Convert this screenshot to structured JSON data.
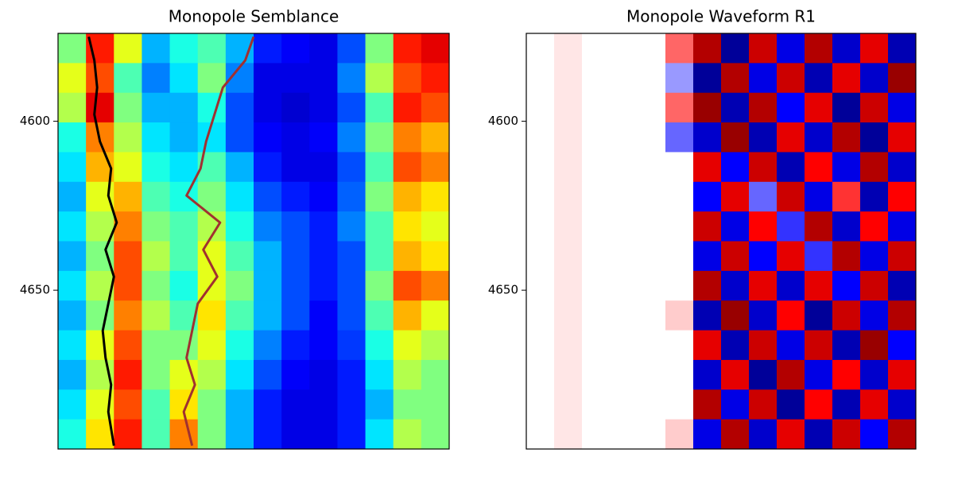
{
  "chart_data": [
    {
      "type": "heatmap",
      "title": "Monopole Semblance",
      "colormap": "jet",
      "ylim": [
        4574,
        4697
      ],
      "y_inverted": true,
      "yticks": [
        4600,
        4650
      ],
      "xlim": [
        0,
        14
      ],
      "z": [
        [
          0.5,
          0.85,
          0.6,
          0.3,
          0.4,
          0.45,
          0.3,
          0.15,
          0.12,
          0.1,
          0.2,
          0.5,
          0.85,
          0.9
        ],
        [
          0.6,
          0.8,
          0.45,
          0.25,
          0.35,
          0.5,
          0.25,
          0.1,
          0.1,
          0.1,
          0.25,
          0.55,
          0.8,
          0.85
        ],
        [
          0.55,
          0.9,
          0.5,
          0.3,
          0.3,
          0.4,
          0.2,
          0.1,
          0.08,
          0.1,
          0.2,
          0.45,
          0.85,
          0.8
        ],
        [
          0.4,
          0.75,
          0.55,
          0.35,
          0.3,
          0.35,
          0.2,
          0.12,
          0.1,
          0.12,
          0.25,
          0.5,
          0.75,
          0.7
        ],
        [
          0.35,
          0.7,
          0.6,
          0.4,
          0.35,
          0.45,
          0.3,
          0.15,
          0.1,
          0.1,
          0.2,
          0.45,
          0.8,
          0.75
        ],
        [
          0.3,
          0.6,
          0.7,
          0.45,
          0.4,
          0.5,
          0.35,
          0.2,
          0.15,
          0.12,
          0.22,
          0.5,
          0.7,
          0.65
        ],
        [
          0.35,
          0.55,
          0.75,
          0.5,
          0.45,
          0.55,
          0.4,
          0.25,
          0.2,
          0.15,
          0.25,
          0.45,
          0.65,
          0.6
        ],
        [
          0.3,
          0.5,
          0.8,
          0.55,
          0.45,
          0.6,
          0.45,
          0.3,
          0.2,
          0.15,
          0.2,
          0.45,
          0.7,
          0.65
        ],
        [
          0.35,
          0.55,
          0.8,
          0.5,
          0.4,
          0.6,
          0.5,
          0.3,
          0.2,
          0.15,
          0.2,
          0.5,
          0.8,
          0.75
        ],
        [
          0.3,
          0.5,
          0.75,
          0.55,
          0.45,
          0.65,
          0.45,
          0.3,
          0.2,
          0.12,
          0.2,
          0.45,
          0.7,
          0.6
        ],
        [
          0.35,
          0.6,
          0.8,
          0.5,
          0.5,
          0.6,
          0.4,
          0.25,
          0.15,
          0.12,
          0.18,
          0.4,
          0.6,
          0.55
        ],
        [
          0.3,
          0.55,
          0.85,
          0.5,
          0.6,
          0.55,
          0.35,
          0.2,
          0.12,
          0.1,
          0.15,
          0.35,
          0.55,
          0.5
        ],
        [
          0.35,
          0.6,
          0.8,
          0.45,
          0.65,
          0.5,
          0.3,
          0.15,
          0.1,
          0.1,
          0.15,
          0.3,
          0.5,
          0.5
        ],
        [
          0.4,
          0.65,
          0.85,
          0.45,
          0.75,
          0.5,
          0.3,
          0.15,
          0.1,
          0.1,
          0.15,
          0.35,
          0.55,
          0.5
        ]
      ],
      "series": [
        {
          "color": "#000000",
          "x": [
            1.1,
            1.3,
            1.4,
            1.3,
            1.5,
            1.9,
            1.8,
            2.1,
            1.7,
            2.0,
            1.8,
            1.6,
            1.7,
            1.9,
            1.8,
            2.0
          ],
          "y": [
            4575,
            4582,
            4590,
            4598,
            4606,
            4614,
            4622,
            4630,
            4638,
            4646,
            4654,
            4662,
            4670,
            4678,
            4686,
            4696
          ]
        },
        {
          "color": "#a03030",
          "x": [
            7.0,
            6.7,
            5.9,
            5.6,
            5.3,
            5.1,
            4.6,
            5.8,
            5.2,
            5.7,
            5.0,
            4.8,
            4.6,
            4.9,
            4.5,
            4.8
          ],
          "y": [
            4575,
            4582,
            4590,
            4598,
            4606,
            4614,
            4622,
            4630,
            4638,
            4646,
            4654,
            4662,
            4670,
            4678,
            4686,
            4696
          ]
        }
      ]
    },
    {
      "type": "heatmap",
      "title": "Monopole Waveform R1",
      "colormap": "seismic",
      "ylim": [
        4574,
        4697
      ],
      "y_inverted": true,
      "yticks": [
        4600,
        4650
      ],
      "xlim": [
        0,
        14
      ],
      "z": [
        [
          0,
          0.05,
          0,
          0,
          0,
          0.3,
          0.8,
          -0.9,
          0.7,
          -0.6,
          0.8,
          -0.7,
          0.6,
          -0.8
        ],
        [
          0,
          0.05,
          0,
          0,
          0,
          -0.2,
          -0.9,
          0.8,
          -0.6,
          0.7,
          -0.8,
          0.6,
          -0.7,
          0.9
        ],
        [
          0,
          0.05,
          0,
          0,
          0,
          0.3,
          0.9,
          -0.8,
          0.8,
          -0.5,
          0.6,
          -0.9,
          0.7,
          -0.6
        ],
        [
          0,
          0.05,
          0,
          0,
          0,
          -0.3,
          -0.7,
          0.9,
          -0.8,
          0.6,
          -0.7,
          0.8,
          -0.9,
          0.6
        ],
        [
          0,
          0.05,
          0,
          0,
          0,
          0,
          0.6,
          -0.5,
          0.7,
          -0.8,
          0.5,
          -0.6,
          0.8,
          -0.7
        ],
        [
          0,
          0.05,
          0,
          0,
          0,
          0,
          -0.5,
          0.6,
          -0.3,
          0.7,
          -0.6,
          0.4,
          -0.8,
          0.5
        ],
        [
          0,
          0.05,
          0,
          0,
          0,
          0,
          0.7,
          -0.6,
          0.5,
          -0.4,
          0.8,
          -0.7,
          0.5,
          -0.6
        ],
        [
          0,
          0.05,
          0,
          0,
          0,
          0,
          -0.6,
          0.7,
          -0.5,
          0.6,
          -0.4,
          0.8,
          -0.6,
          0.7
        ],
        [
          0,
          0.05,
          0,
          0,
          0,
          0,
          0.8,
          -0.7,
          0.6,
          -0.7,
          0.6,
          -0.5,
          0.7,
          -0.8
        ],
        [
          0,
          0.05,
          0,
          0,
          0,
          0.1,
          -0.8,
          0.9,
          -0.7,
          0.5,
          -0.9,
          0.7,
          -0.6,
          0.8
        ],
        [
          0,
          0.05,
          0,
          0,
          0,
          0,
          0.6,
          -0.8,
          0.7,
          -0.6,
          0.7,
          -0.8,
          0.9,
          -0.5
        ],
        [
          0,
          0.05,
          0,
          0,
          0,
          0,
          -0.7,
          0.6,
          -0.9,
          0.8,
          -0.6,
          0.5,
          -0.7,
          0.6
        ],
        [
          0,
          0.05,
          0,
          0,
          0,
          0,
          0.8,
          -0.6,
          0.7,
          -0.9,
          0.5,
          -0.8,
          0.6,
          -0.7
        ],
        [
          0,
          0.05,
          0,
          0,
          0,
          0.1,
          -0.6,
          0.8,
          -0.7,
          0.6,
          -0.8,
          0.7,
          -0.5,
          0.8
        ]
      ]
    }
  ]
}
